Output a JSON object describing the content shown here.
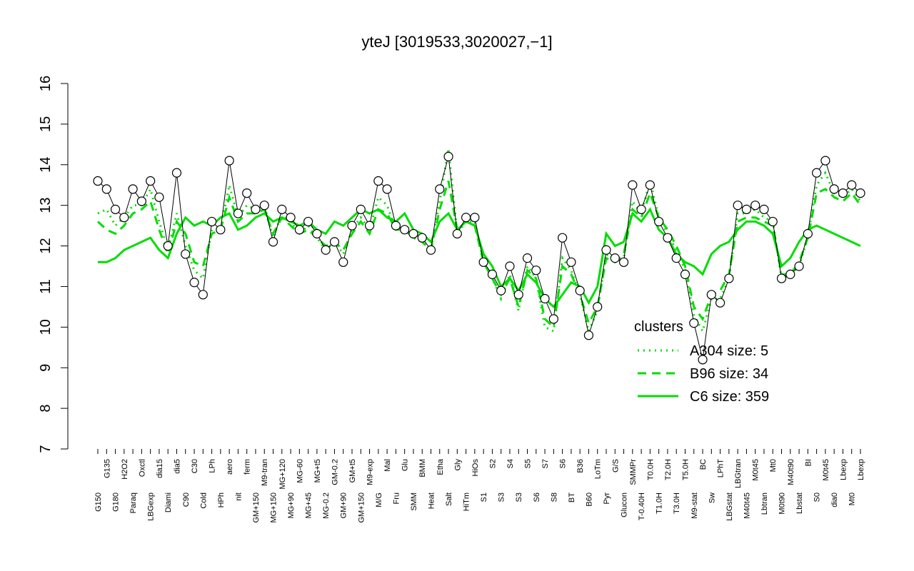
{
  "chart_data": {
    "type": "line",
    "title": "yteJ [3019533,3020027,−1]",
    "categories": [
      "G150",
      "G135",
      "G180",
      "H2O2",
      "Paraq",
      "Oxctl",
      "LBGexp",
      "dia15",
      "Diami",
      "dia5",
      "C90",
      "C30",
      "Cold",
      "LPh",
      "HPh",
      "aero",
      "nit",
      "ferm",
      "GM+150",
      "M9-tran",
      "MG+150",
      "MG+120",
      "MG+90",
      "MG-60",
      "MG+45",
      "MG+t5",
      "MG-0.2",
      "GM-0.2",
      "GM+90",
      "GM+t5",
      "GM+150",
      "M9-exp",
      "M/G",
      "Mal",
      "Fru",
      "Glu",
      "SMM",
      "BMM",
      "Heat",
      "Etha",
      "Salt",
      "Gly",
      "HiTm",
      "HiOs",
      "S1",
      "S2",
      "S3",
      "S4",
      "S3",
      "S5",
      "S6",
      "S7",
      "S8",
      "S6",
      "BT",
      "B36",
      "B60",
      "LoTm",
      "Pyr",
      "G/S",
      "Glucon",
      "SMMPr",
      "T-0.40H",
      "T0.0H",
      "T1.0H",
      "T2.0H",
      "T3.0H",
      "T5.0H",
      "M9-stat",
      "BC",
      "Sw",
      "LPhT",
      "LBGstat",
      "LBGtran",
      "M40t45",
      "M0t45",
      "Lbtran",
      "Mt0",
      "M0t90",
      "M40t90",
      "Lbstat",
      "BI",
      "S0",
      "M0t45",
      "dia0",
      "Lbexp",
      "Mt0",
      "Lbexp"
    ],
    "values": [
      13.6,
      13.4,
      12.9,
      12.7,
      13.4,
      13.1,
      13.6,
      13.2,
      12.0,
      13.8,
      11.8,
      11.1,
      10.8,
      12.6,
      12.4,
      14.1,
      12.8,
      13.3,
      12.9,
      13.0,
      12.1,
      12.9,
      12.7,
      12.4,
      12.6,
      12.3,
      11.9,
      12.1,
      11.6,
      12.5,
      12.9,
      12.5,
      13.6,
      13.4,
      12.5,
      12.4,
      12.3,
      12.2,
      11.9,
      13.4,
      14.2,
      12.3,
      12.7,
      12.7,
      11.6,
      11.3,
      10.9,
      11.5,
      10.8,
      11.7,
      11.4,
      10.7,
      10.2,
      12.2,
      11.6,
      10.9,
      9.8,
      10.5,
      11.9,
      11.7,
      11.6,
      13.5,
      12.9,
      13.5,
      12.6,
      12.2,
      11.7,
      11.3,
      10.1,
      9.2,
      10.8,
      10.6,
      11.2,
      13.0,
      12.9,
      13.0,
      12.9,
      12.6,
      11.2,
      11.3,
      11.5,
      12.3,
      13.8,
      14.1,
      13.4,
      13.3,
      13.5,
      13.3
    ],
    "point_color": "#ffffff",
    "series": [
      {
        "name": "A304 size: 5",
        "color": "#00dd00",
        "style": "dotted",
        "values": [
          12.8,
          12.9,
          12.5,
          12.7,
          13.0,
          13.0,
          13.4,
          12.6,
          11.9,
          12.8,
          12.0,
          11.4,
          11.2,
          12.4,
          12.4,
          13.5,
          12.7,
          13.0,
          12.9,
          13.0,
          12.2,
          12.8,
          12.6,
          12.3,
          12.5,
          12.2,
          11.9,
          12.1,
          11.8,
          12.4,
          12.7,
          12.4,
          13.2,
          13.0,
          12.4,
          12.4,
          12.2,
          12.1,
          11.9,
          13.1,
          14.4,
          12.3,
          12.6,
          12.6,
          11.6,
          11.2,
          10.7,
          11.3,
          10.4,
          11.5,
          11.2,
          10.0,
          9.9,
          11.7,
          11.4,
          10.8,
          9.9,
          10.4,
          11.8,
          11.6,
          11.7,
          13.1,
          12.8,
          13.6,
          12.7,
          12.3,
          11.9,
          11.4,
          10.3,
          9.9,
          10.7,
          10.7,
          11.2,
          12.8,
          12.8,
          12.9,
          12.7,
          12.6,
          11.2,
          11.3,
          11.5,
          12.2,
          13.5,
          13.8,
          13.3,
          13.2,
          13.4,
          13.1
        ]
      },
      {
        "name": "B96 size: 34",
        "color": "#00dd00",
        "style": "dashed",
        "values": [
          12.6,
          12.4,
          12.3,
          12.5,
          12.8,
          12.9,
          13.1,
          12.4,
          11.8,
          12.6,
          12.3,
          11.6,
          11.5,
          12.3,
          12.4,
          13.2,
          12.6,
          12.8,
          12.8,
          12.9,
          12.3,
          12.7,
          12.5,
          12.3,
          12.4,
          12.2,
          12.0,
          12.1,
          11.9,
          12.3,
          12.6,
          12.3,
          12.9,
          12.8,
          12.4,
          12.4,
          12.2,
          12.1,
          11.9,
          12.9,
          13.6,
          12.4,
          12.6,
          12.5,
          11.6,
          11.2,
          10.8,
          11.2,
          10.5,
          11.4,
          11.2,
          10.2,
          10.0,
          11.5,
          11.3,
          10.8,
          10.1,
          10.5,
          11.7,
          11.6,
          11.8,
          12.9,
          12.7,
          13.3,
          12.7,
          12.4,
          12.0,
          11.5,
          10.5,
          10.2,
          10.8,
          10.9,
          11.3,
          12.6,
          12.7,
          12.7,
          12.6,
          12.5,
          11.3,
          11.3,
          11.6,
          12.2,
          13.3,
          13.4,
          13.2,
          13.1,
          13.3,
          13.0
        ]
      },
      {
        "name": "C6 size: 359",
        "color": "#00dd00",
        "style": "solid",
        "values": [
          11.6,
          11.6,
          11.7,
          11.9,
          12.0,
          12.1,
          12.2,
          11.9,
          11.7,
          12.3,
          12.7,
          12.5,
          12.6,
          12.5,
          12.7,
          12.8,
          12.4,
          12.5,
          12.7,
          12.8,
          12.6,
          12.7,
          12.6,
          12.5,
          12.6,
          12.4,
          12.3,
          12.6,
          12.5,
          12.7,
          12.9,
          12.8,
          12.9,
          12.7,
          12.6,
          12.8,
          12.4,
          12.3,
          12.1,
          12.6,
          12.8,
          12.4,
          12.6,
          12.5,
          11.8,
          11.5,
          11.0,
          11.2,
          10.9,
          11.3,
          11.1,
          10.7,
          10.5,
          10.8,
          11.1,
          11.0,
          10.6,
          11.0,
          12.3,
          12.0,
          12.1,
          12.8,
          12.6,
          12.9,
          12.4,
          12.2,
          11.8,
          11.6,
          11.5,
          11.3,
          11.8,
          12.0,
          12.1,
          12.4,
          12.6,
          12.6,
          12.5,
          12.3,
          11.5,
          11.7,
          12.1,
          12.4,
          12.5,
          12.4,
          12.3,
          12.2,
          12.1,
          12.0
        ]
      }
    ],
    "legend_title": "clusters",
    "ylim": [
      7,
      16
    ],
    "yticks": [
      7,
      8,
      9,
      10,
      11,
      12,
      13,
      14,
      15,
      16
    ]
  }
}
